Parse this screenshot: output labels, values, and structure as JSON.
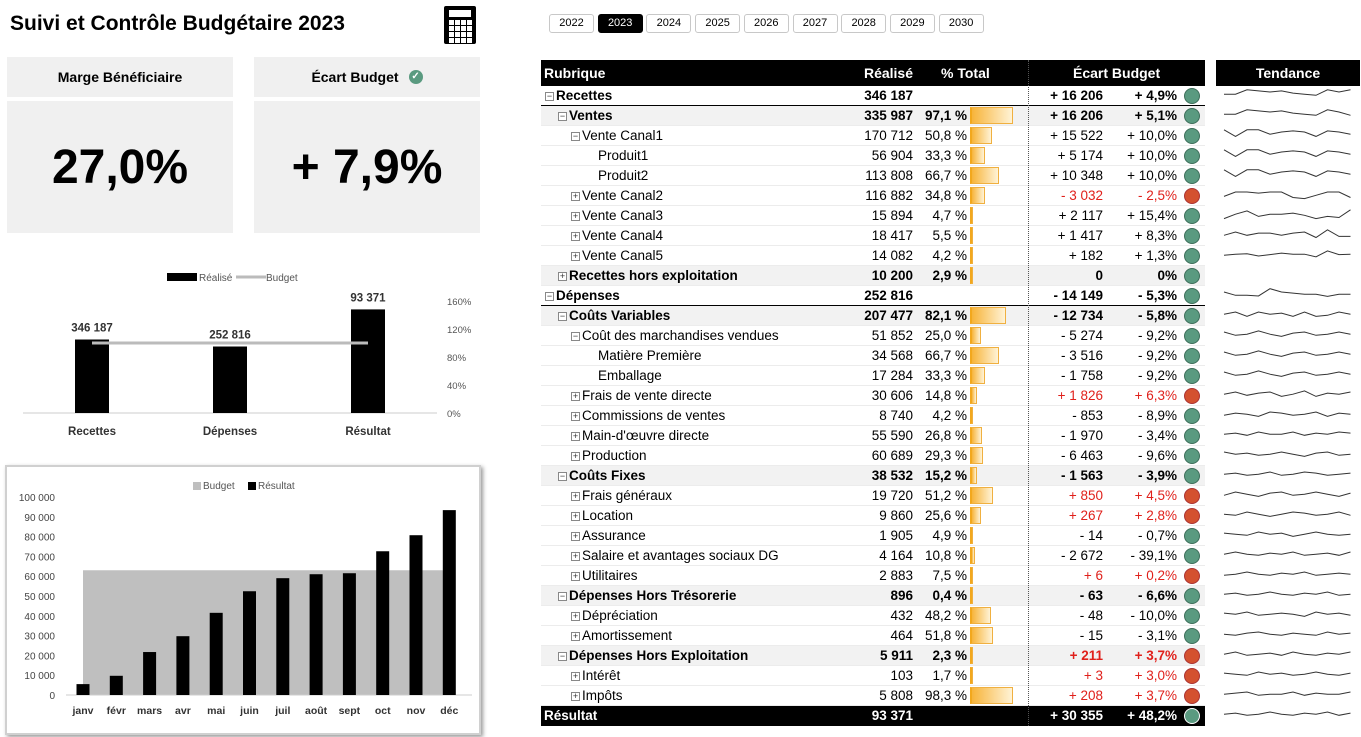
{
  "title": "Suivi et Contrôle Budgétaire 2023",
  "icons": {
    "calculator": "calculator-icon",
    "check": "check-circle-icon"
  },
  "colors": {
    "good": "#5a9a80",
    "bad": "#d4512f",
    "bar": "#f7b43a",
    "negative_text": "#e0201b"
  },
  "kpis": [
    {
      "label": "Marge Bénéficiaire",
      "value": "27,0%"
    },
    {
      "label": "Écart Budget",
      "value": "+ 7,9%",
      "status": "good"
    }
  ],
  "years": {
    "items": [
      "2022",
      "2023",
      "2024",
      "2025",
      "2026",
      "2027",
      "2028",
      "2029",
      "2030"
    ],
    "selected": "2023"
  },
  "table": {
    "headers": {
      "rubrique": "Rubrique",
      "realise": "Réalisé",
      "pct": "% Total",
      "ecart": "Écart Budget",
      "tendance": "Tendance"
    },
    "rows": [
      {
        "label": "Recettes",
        "level": 0,
        "exp": "minus",
        "bold": true,
        "shaded": false,
        "realise": "346 187",
        "pct": "",
        "ecart": "+ 16 206",
        "ecart_pct": "+ 4,9%",
        "status": "good",
        "trend": [
          4,
          4,
          6,
          5.5,
          5,
          5.5,
          4.5,
          4,
          3.5,
          6,
          5,
          6
        ]
      },
      {
        "label": "Ventes",
        "level": 1,
        "exp": "minus",
        "bold": true,
        "shaded": true,
        "realise": "335 987",
        "pct": "97,1 %",
        "ecart": "+ 16 206",
        "ecart_pct": "+ 5,1%",
        "status": "good",
        "trend": [
          4,
          4,
          6,
          5.5,
          5,
          5.5,
          4.5,
          4,
          3.5,
          6,
          5,
          3.5
        ]
      },
      {
        "label": "Vente Canal1",
        "level": 2,
        "exp": "minus",
        "bold": false,
        "shaded": false,
        "realise": "170 712",
        "pct": "50,8 %",
        "ecart": "+ 15 522",
        "ecart_pct": "+ 10,0%",
        "status": "good",
        "trend": [
          6,
          3,
          6,
          6,
          4,
          5,
          5.5,
          5,
          3,
          5.5,
          5,
          4
        ]
      },
      {
        "label": "Produit1",
        "level": 3,
        "exp": "none",
        "bold": false,
        "shaded": false,
        "realise": "56 904",
        "pct": "33,3 %",
        "ecart": "+ 5 174",
        "ecart_pct": "+ 10,0%",
        "status": "good",
        "trend": [
          6,
          3,
          6,
          6,
          4,
          5,
          5.5,
          5,
          3,
          5.5,
          5,
          4
        ]
      },
      {
        "label": "Produit2",
        "level": 3,
        "exp": "none",
        "bold": false,
        "shaded": false,
        "realise": "113 808",
        "pct": "66,7 %",
        "ecart": "+ 10 348",
        "ecart_pct": "+ 10,0%",
        "status": "good",
        "trend": [
          6,
          3,
          6,
          6,
          4,
          5,
          5.5,
          5,
          3,
          5.5,
          5,
          4
        ]
      },
      {
        "label": "Vente Canal2",
        "level": 2,
        "exp": "plus",
        "bold": false,
        "shaded": false,
        "realise": "116 882",
        "pct": "34,8 %",
        "ecart": "- 3 032",
        "ecart_pct": "- 2,5%",
        "status": "bad",
        "trend": [
          3,
          5,
          5,
          4.5,
          5,
          5,
          2.5,
          2,
          3.5,
          5,
          5,
          2.5
        ]
      },
      {
        "label": "Vente Canal3",
        "level": 2,
        "exp": "plus",
        "bold": false,
        "shaded": false,
        "realise": "15 894",
        "pct": "4,7 %",
        "ecart": "+ 2 117",
        "ecart_pct": "+ 15,4%",
        "status": "good",
        "trend": [
          2,
          4,
          5.5,
          3,
          4,
          4,
          4.5,
          3.5,
          2,
          3,
          2.5,
          6
        ]
      },
      {
        "label": "Vente Canal4",
        "level": 2,
        "exp": "plus",
        "bold": false,
        "shaded": false,
        "realise": "18 417",
        "pct": "5,5 %",
        "ecart": "+ 1 417",
        "ecart_pct": "+ 8,3%",
        "status": "good",
        "trend": [
          3.5,
          5,
          3.5,
          4.5,
          4.5,
          3.5,
          4.5,
          5,
          2.5,
          6,
          3,
          3
        ]
      },
      {
        "label": "Vente Canal5",
        "level": 2,
        "exp": "plus",
        "bold": false,
        "shaded": false,
        "realise": "14 082",
        "pct": "4,2 %",
        "ecart": "+ 182",
        "ecart_pct": "+ 1,3%",
        "status": "good",
        "trend": [
          3.5,
          4,
          4.2,
          3.2,
          3.8,
          4.5,
          4,
          4,
          2.8,
          5.5,
          3.8,
          4
        ]
      },
      {
        "label": "Recettes hors exploitation",
        "level": 1,
        "exp": "plus",
        "bold": true,
        "shaded": true,
        "realise": "10 200",
        "pct": "2,9 %",
        "ecart": "0",
        "ecart_pct": "0%",
        "status": "good",
        "trend": null
      },
      {
        "label": "Dépenses",
        "level": 0,
        "exp": "minus",
        "bold": true,
        "shaded": false,
        "realise": "252 816",
        "pct": "",
        "ecart": "- 14 149",
        "ecart_pct": "- 5,3%",
        "status": "good",
        "trend": [
          5,
          3.5,
          3.5,
          3.2,
          6.5,
          5,
          4.5,
          4,
          4,
          3,
          4,
          4
        ]
      },
      {
        "label": "Coûts Variables",
        "level": 1,
        "exp": "minus",
        "bold": true,
        "shaded": true,
        "realise": "207 477",
        "pct": "82,1 %",
        "ecart": "- 12 734",
        "ecart_pct": "- 5,8%",
        "status": "good",
        "trend": [
          4,
          5,
          3,
          5,
          4,
          4.5,
          3,
          5,
          3,
          3.5,
          5,
          4
        ]
      },
      {
        "label": "Coût des marchandises vendues",
        "level": 2,
        "exp": "minus",
        "bold": false,
        "shaded": false,
        "realise": "51 852",
        "pct": "25,0 %",
        "ecart": "- 5 274",
        "ecart_pct": "- 9,2%",
        "status": "good",
        "trend": [
          5,
          3.5,
          4,
          5.5,
          4,
          3,
          4.5,
          5,
          3.5,
          4,
          5,
          4
        ]
      },
      {
        "label": "Matière Première",
        "level": 3,
        "exp": "none",
        "bold": false,
        "shaded": false,
        "realise": "34 568",
        "pct": "66,7 %",
        "ecart": "- 3 516",
        "ecart_pct": "- 9,2%",
        "status": "good",
        "trend": [
          5,
          3.5,
          4,
          5.5,
          4,
          3,
          4.5,
          5,
          3.5,
          4,
          5,
          4
        ]
      },
      {
        "label": "Emballage",
        "level": 3,
        "exp": "none",
        "bold": false,
        "shaded": false,
        "realise": "17 284",
        "pct": "33,3 %",
        "ecart": "- 1 758",
        "ecart_pct": "- 9,2%",
        "status": "good",
        "trend": [
          5,
          3.5,
          4,
          5.5,
          4,
          3,
          4.5,
          5,
          3.5,
          4,
          5,
          4
        ]
      },
      {
        "label": "Frais de vente directe",
        "level": 2,
        "exp": "plus",
        "bold": false,
        "shaded": false,
        "realise": "30 606",
        "pct": "14,8 %",
        "ecart": "+ 1 826",
        "ecart_pct": "+ 6,3%",
        "status": "bad",
        "trend": [
          4,
          5,
          3.5,
          4.5,
          5,
          3,
          4,
          5.5,
          3,
          4.5,
          4,
          5
        ]
      },
      {
        "label": "Commissions de ventes",
        "level": 2,
        "exp": "plus",
        "bold": false,
        "shaded": false,
        "realise": "8 740",
        "pct": "4,2 %",
        "ecart": "- 853",
        "ecart_pct": "- 8,9%",
        "status": "good",
        "trend": [
          3.5,
          4.5,
          4,
          3,
          5,
          4.5,
          3.5,
          4,
          5,
          3,
          4.5,
          4
        ]
      },
      {
        "label": "Main-d'œuvre directe",
        "level": 2,
        "exp": "plus",
        "bold": false,
        "shaded": false,
        "realise": "55 590",
        "pct": "26,8 %",
        "ecart": "- 1 970",
        "ecart_pct": "- 3,4%",
        "status": "good",
        "trend": [
          4,
          4.5,
          3.5,
          5,
          4,
          4,
          5,
          3.5,
          4.5,
          4,
          5,
          4.5
        ]
      },
      {
        "label": "Production",
        "level": 2,
        "exp": "plus",
        "bold": false,
        "shaded": false,
        "realise": "60 689",
        "pct": "29,3 %",
        "ecart": "- 6 463",
        "ecart_pct": "- 9,6%",
        "status": "good",
        "trend": [
          5,
          4,
          4.5,
          3.5,
          4,
          5,
          4,
          3,
          4.5,
          5,
          3.5,
          4
        ]
      },
      {
        "label": "Coûts Fixes",
        "level": 1,
        "exp": "minus",
        "bold": true,
        "shaded": true,
        "realise": "38 532",
        "pct": "15,2 %",
        "ecart": "- 1 563",
        "ecart_pct": "- 3,9%",
        "status": "good",
        "trend": [
          4,
          4.5,
          3.5,
          4,
          5,
          3.5,
          4,
          5,
          4.5,
          3.5,
          4,
          4.5
        ]
      },
      {
        "label": "Frais généraux",
        "level": 2,
        "exp": "plus",
        "bold": false,
        "shaded": false,
        "realise": "19 720",
        "pct": "51,2 %",
        "ecart": "+ 850",
        "ecart_pct": "+ 4,5%",
        "status": "bad",
        "trend": [
          3.5,
          5,
          4,
          3,
          4.5,
          5,
          3.5,
          4,
          5,
          4,
          3,
          4.5
        ]
      },
      {
        "label": "Location",
        "level": 2,
        "exp": "plus",
        "bold": false,
        "shaded": false,
        "realise": "9 860",
        "pct": "25,6 %",
        "ecart": "+ 267",
        "ecart_pct": "+ 2,8%",
        "status": "bad",
        "trend": [
          4,
          3.5,
          5,
          4,
          3,
          4,
          5,
          4.5,
          3.5,
          4,
          5,
          3.5
        ]
      },
      {
        "label": "Assurance",
        "level": 2,
        "exp": "plus",
        "bold": false,
        "shaded": false,
        "realise": "1 905",
        "pct": "4,9 %",
        "ecart": "- 14",
        "ecart_pct": "- 0,7%",
        "status": "good",
        "trend": [
          4.5,
          4,
          3.5,
          5,
          4,
          4.5,
          3,
          4,
          5,
          4,
          3.5,
          4
        ]
      },
      {
        "label": "Salaire et avantages sociaux DG",
        "level": 2,
        "exp": "plus",
        "bold": false,
        "shaded": false,
        "realise": "4 164",
        "pct": "10,8 %",
        "ecart": "- 2 672",
        "ecart_pct": "- 39,1%",
        "status": "good",
        "trend": [
          4,
          5,
          4,
          3.5,
          4.5,
          4,
          5,
          3.5,
          4,
          4.5,
          3.5,
          5
        ]
      },
      {
        "label": "Utilitaires",
        "level": 2,
        "exp": "plus",
        "bold": false,
        "shaded": false,
        "realise": "2 883",
        "pct": "7,5 %",
        "ecart": "+ 6",
        "ecart_pct": "+ 0,2%",
        "status": "bad",
        "trend": [
          3.5,
          4,
          5,
          4,
          3.5,
          4.5,
          4,
          5,
          3.5,
          4,
          4.5,
          4
        ]
      },
      {
        "label": "Dépenses Hors Trésorerie",
        "level": 1,
        "exp": "minus",
        "bold": true,
        "shaded": true,
        "realise": "896",
        "pct": "0,4 %",
        "ecart": "- 63",
        "ecart_pct": "- 6,6%",
        "status": "good",
        "trend": [
          4,
          4.5,
          3.5,
          4,
          5,
          4,
          3.5,
          4.5,
          4,
          5,
          3.5,
          4
        ]
      },
      {
        "label": "Dépréciation",
        "level": 2,
        "exp": "plus",
        "bold": false,
        "shaded": false,
        "realise": "432",
        "pct": "48,2 %",
        "ecart": "- 48",
        "ecart_pct": "- 10,0%",
        "status": "good",
        "trend": [
          4.5,
          4,
          5,
          3.5,
          4,
          4.5,
          4,
          3,
          5,
          4,
          4.5,
          3.5
        ]
      },
      {
        "label": "Amortissement",
        "level": 2,
        "exp": "plus",
        "bold": false,
        "shaded": false,
        "realise": "464",
        "pct": "51,8 %",
        "ecart": "- 15",
        "ecart_pct": "- 3,1%",
        "status": "good",
        "trend": [
          4,
          3.5,
          4.5,
          5,
          4,
          3.5,
          4.5,
          4,
          3.5,
          5,
          4,
          4.5
        ]
      },
      {
        "label": "Dépenses Hors Exploitation",
        "level": 1,
        "exp": "minus",
        "bold": true,
        "shaded": true,
        "realise": "5 911",
        "pct": "2,3 %",
        "ecart": "+ 211",
        "ecart_pct": "+ 3,7%",
        "status": "bad",
        "trend": [
          4,
          5,
          3.5,
          4,
          4.5,
          3.5,
          5,
          4,
          3.5,
          4.5,
          4,
          5
        ]
      },
      {
        "label": "Intérêt",
        "level": 2,
        "exp": "plus",
        "bold": false,
        "shaded": false,
        "realise": "103",
        "pct": "1,7 %",
        "ecart": "+ 3",
        "ecart_pct": "+ 3,0%",
        "status": "bad",
        "trend": [
          4.5,
          4,
          3.5,
          5,
          4,
          4.5,
          3.5,
          4,
          5,
          4,
          3.5,
          4.5
        ]
      },
      {
        "label": "Impôts",
        "level": 2,
        "exp": "plus",
        "bold": false,
        "shaded": false,
        "realise": "5 808",
        "pct": "98,3 %",
        "ecart": "+ 208",
        "ecart_pct": "+ 3,7%",
        "status": "bad",
        "trend": [
          4,
          4.5,
          5,
          3.5,
          4,
          4,
          5,
          3.5,
          4.5,
          4,
          4,
          5
        ]
      }
    ],
    "total": {
      "label": "Résultat",
      "realise": "93 371",
      "ecart": "+ 30 355",
      "ecart_pct": "+ 48,2%",
      "status": "good",
      "trend": [
        4,
        4.5,
        3.5,
        4,
        5,
        4,
        3.5,
        4.5,
        4,
        5,
        3.5,
        4.5
      ]
    }
  },
  "chart_data": [
    {
      "type": "bar",
      "legend": [
        "Réalisé",
        "Budget"
      ],
      "legend_position": "top",
      "categories": [
        "Recettes",
        "Dépenses",
        "Résultat"
      ],
      "values_pct_of_budget": [
        105,
        95,
        148
      ],
      "data_labels": [
        "346 187",
        "252 816",
        "93 371"
      ],
      "budget_line_pct": 100,
      "ylim": [
        0,
        160
      ],
      "yticks": [
        "0%",
        "40%",
        "80%",
        "120%",
        "160%"
      ],
      "grid": false
    },
    {
      "type": "bar",
      "legend": [
        "Budget",
        "Résultat"
      ],
      "legend_position": "top",
      "categories": [
        "janv",
        "févr",
        "mars",
        "avr",
        "mai",
        "juin",
        "juil",
        "août",
        "sept",
        "oct",
        "nov",
        "déc"
      ],
      "series": [
        {
          "name": "Budget",
          "type": "area",
          "values": [
            63016,
            63016,
            63016,
            63016,
            63016,
            63016,
            63016,
            63016,
            63016,
            63016,
            63016,
            63016
          ]
        },
        {
          "name": "Résultat",
          "values": [
            5500,
            9700,
            21700,
            29700,
            41500,
            52400,
            59000,
            61000,
            61500,
            72600,
            80700,
            93371
          ]
        }
      ],
      "ylim": [
        0,
        100000
      ],
      "yticks": [
        "0",
        "10 000",
        "20 000",
        "30 000",
        "40 000",
        "50 000",
        "60 000",
        "70 000",
        "80 000",
        "90 000",
        "100 000"
      ],
      "grid": false
    }
  ]
}
